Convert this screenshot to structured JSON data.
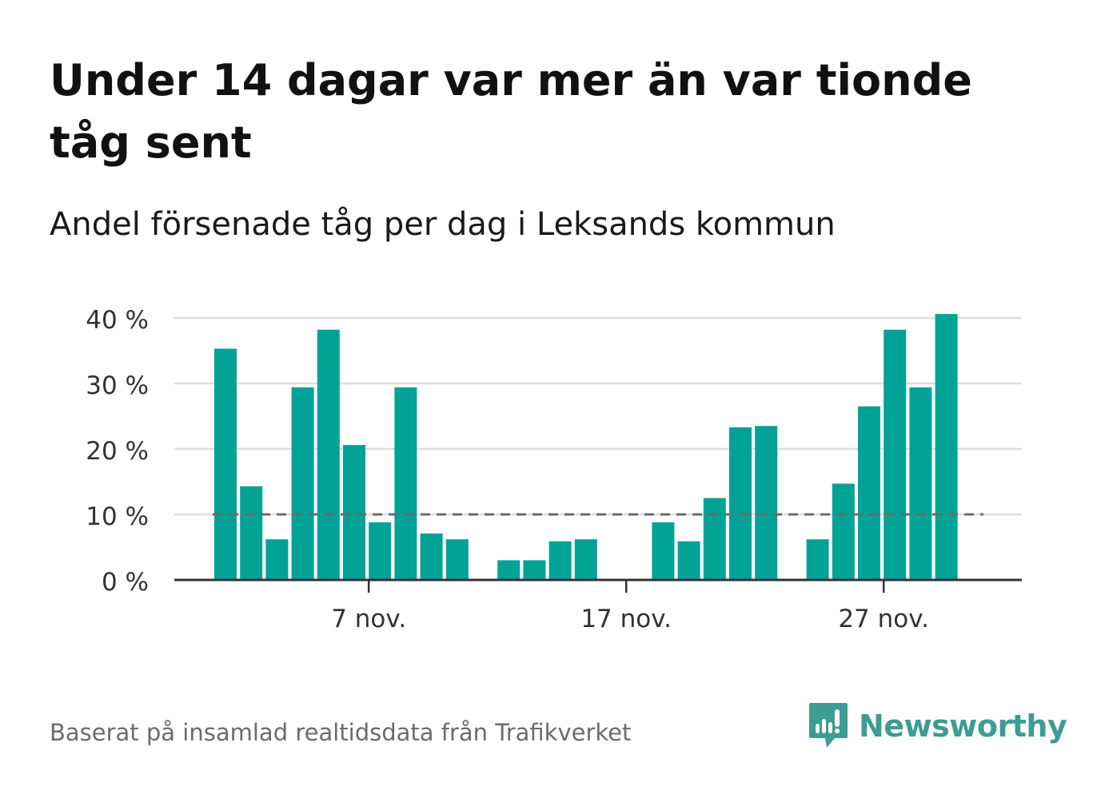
{
  "title": "Under 14 dagar var mer än var tionde tåg sent",
  "subtitle": "Andel försenade tåg per dag i Leksands kommun",
  "source": "Baserat på insamlad realtidsdata från Trafikverket",
  "brand": {
    "name": "Newsworthy",
    "icon": "newsworthy-logo-icon",
    "color": "#3d9c93"
  },
  "colors": {
    "bar": "#00a396",
    "reference": "#6b6b6b",
    "grid": "#dddddd",
    "axis": "#333333"
  },
  "chart_data": {
    "type": "bar",
    "title": "Under 14 dagar var mer än var tionde tåg sent",
    "subtitle": "Andel försenade tåg per dag i Leksands kommun",
    "x_axis": {
      "start_day": 1,
      "end_day": 30,
      "month": "nov.",
      "ticks": [
        {
          "day": 7,
          "label": "7 nov."
        },
        {
          "day": 17,
          "label": "17 nov."
        },
        {
          "day": 27,
          "label": "27 nov."
        }
      ]
    },
    "y_axis": {
      "ylim": [
        0,
        40
      ],
      "ticks": [
        {
          "value": 0,
          "label": "0 %"
        },
        {
          "value": 10,
          "label": "10 %"
        },
        {
          "value": 20,
          "label": "20 %"
        },
        {
          "value": 30,
          "label": "30 %"
        },
        {
          "value": 40,
          "label": "40 %"
        }
      ]
    },
    "grid": true,
    "reference_line": {
      "value": 10,
      "style": "dashed"
    },
    "series": [
      {
        "days": [
          1,
          2,
          3,
          4,
          5,
          6,
          7,
          8,
          9,
          10,
          11,
          12,
          13,
          14,
          15,
          16,
          17,
          18,
          19,
          20,
          21,
          22,
          23,
          24,
          25,
          26,
          27,
          28,
          29,
          30
        ],
        "values": [
          35.3,
          14.3,
          6.2,
          29.4,
          38.2,
          20.6,
          8.8,
          29.4,
          7.1,
          6.2,
          null,
          3.0,
          3.0,
          5.9,
          6.2,
          null,
          null,
          8.8,
          5.9,
          12.5,
          23.3,
          23.5,
          null,
          6.2,
          14.7,
          26.5,
          38.2,
          29.4,
          40.6,
          null
        ]
      }
    ]
  }
}
